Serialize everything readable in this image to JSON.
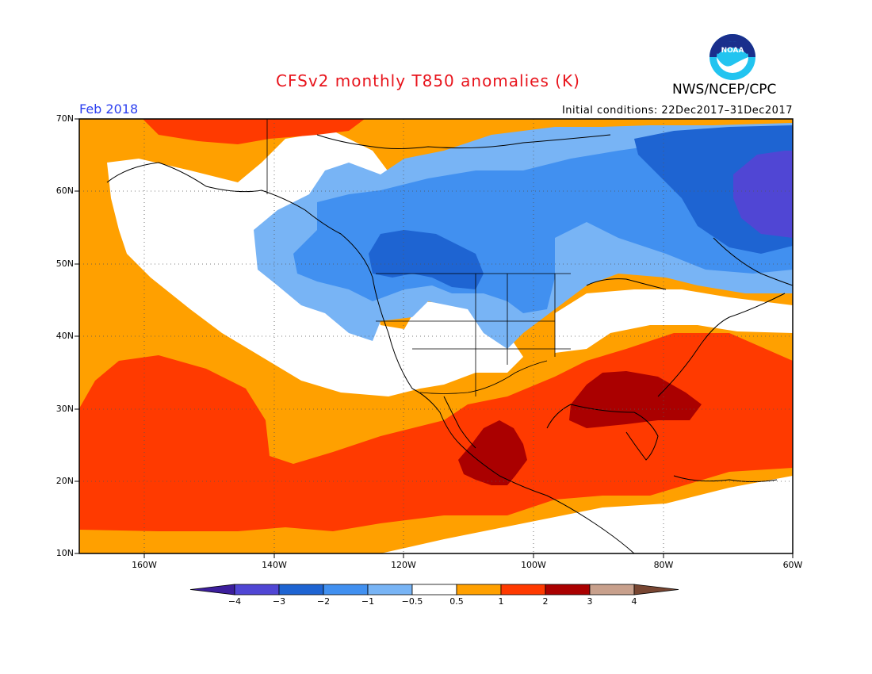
{
  "title": "CFSv2 monthly T850 anomalies (K)",
  "org": "NWS/NCEP/CPC",
  "logo_text": "NOAA",
  "month": "Feb 2018",
  "initial_conditions": "Initial conditions: 22Dec2017–31Dec2017",
  "lat_labels": [
    "70N",
    "60N",
    "50N",
    "40N",
    "30N",
    "20N",
    "10N"
  ],
  "lon_labels": [
    "160W",
    "140W",
    "120W",
    "100W",
    "80W",
    "60W"
  ],
  "colorbar": {
    "labels": [
      "−4",
      "−3",
      "−2",
      "−1",
      "−0.5",
      "0.5",
      "1",
      "2",
      "3",
      "4"
    ],
    "colors": [
      "#3c1e9c",
      "#5046d4",
      "#1e64d2",
      "#4190f0",
      "#78b4f5",
      "#ffffff",
      "#ffa000",
      "#ff3a00",
      "#aa0000",
      "#c8a08c",
      "#784632"
    ]
  },
  "map_data": {
    "type": "gridded-anomaly",
    "extent": {
      "lon": [
        -170,
        -60
      ],
      "lat": [
        10,
        70
      ]
    },
    "regions": [
      {
        "level": "0.5 to 1",
        "color": "#ffa000",
        "area": "North Pacific / Bering Sea"
      },
      {
        "level": "1 to 2",
        "color": "#ff3a00",
        "area": "Subtropical North Pacific near Hawaii"
      },
      {
        "level": "1 to 2",
        "color": "#ff3a00",
        "area": "Southeastern US, Gulf of Mexico, Mexico"
      },
      {
        "level": "2 to 3",
        "color": "#aa0000",
        "area": "Southeastern US (Alabama/Georgia/Florida)"
      },
      {
        "level": "2 to 3",
        "color": "#aa0000",
        "area": "Central Mexico"
      },
      {
        "level": "-0.5 to 0.5",
        "color": "#ffffff",
        "area": "Alaska, Gulf of Alaska, US Southwest"
      },
      {
        "level": "-1 to -0.5",
        "color": "#78b4f5",
        "area": "Northern Canada, Pacific Northwest"
      },
      {
        "level": "-2 to -1",
        "color": "#4190f0",
        "area": "Western/Central Canada, Northern Plains, Hudson Bay"
      },
      {
        "level": "-3 to -2",
        "color": "#1e64d2",
        "area": "Prairies, Quebec/Labrador"
      },
      {
        "level": "-4 to -3",
        "color": "#5046d4",
        "area": "Baffin Island / Labrador Sea"
      }
    ]
  }
}
